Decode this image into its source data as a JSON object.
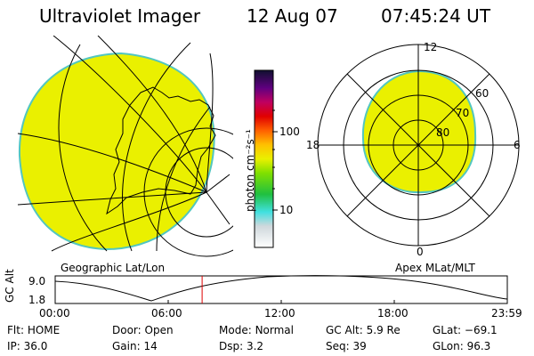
{
  "header": {
    "title": "Ultraviolet Imager",
    "date": "12 Aug 07",
    "time": "07:45:24 UT"
  },
  "colorbar": {
    "unit_label": "photon cm⁻²s⁻¹",
    "ticks": [
      "100",
      "10"
    ]
  },
  "panels": {
    "left_label": "Geographic Lat/Lon",
    "right_label": "Apex MLat/MLT",
    "polar_mlt_labels": [
      "12",
      "18",
      "6",
      "0"
    ],
    "polar_lat_labels": [
      "60",
      "70",
      "80"
    ]
  },
  "timeline": {
    "axis_label": "GC Alt",
    "y_ticks": [
      "9.0",
      "1.8"
    ],
    "x_ticks": [
      "00:00",
      "06:00",
      "12:00",
      "18:00",
      "23:59"
    ],
    "current_time_fraction": 0.325
  },
  "footer": {
    "row1": [
      {
        "key": "Flt:",
        "val": "HOME"
      },
      {
        "key": "Door:",
        "val": "Open"
      },
      {
        "key": "Mode:",
        "val": "Normal"
      },
      {
        "key": "GC Alt:",
        "val": "5.9 Re"
      },
      {
        "key": "GLat:",
        "val": "−69.1"
      }
    ],
    "row2": [
      {
        "key": "IP:",
        "val": "36.0"
      },
      {
        "key": "Gain:",
        "val": "14"
      },
      {
        "key": "Dsp:",
        "val": "3.2"
      },
      {
        "key": "Seq:",
        "val": "39"
      },
      {
        "key": "GLon:",
        "val": "96.3"
      }
    ]
  },
  "colors": {
    "emission": "#eaf000",
    "edge": "#52c6c0",
    "marker": "#e00000"
  }
}
